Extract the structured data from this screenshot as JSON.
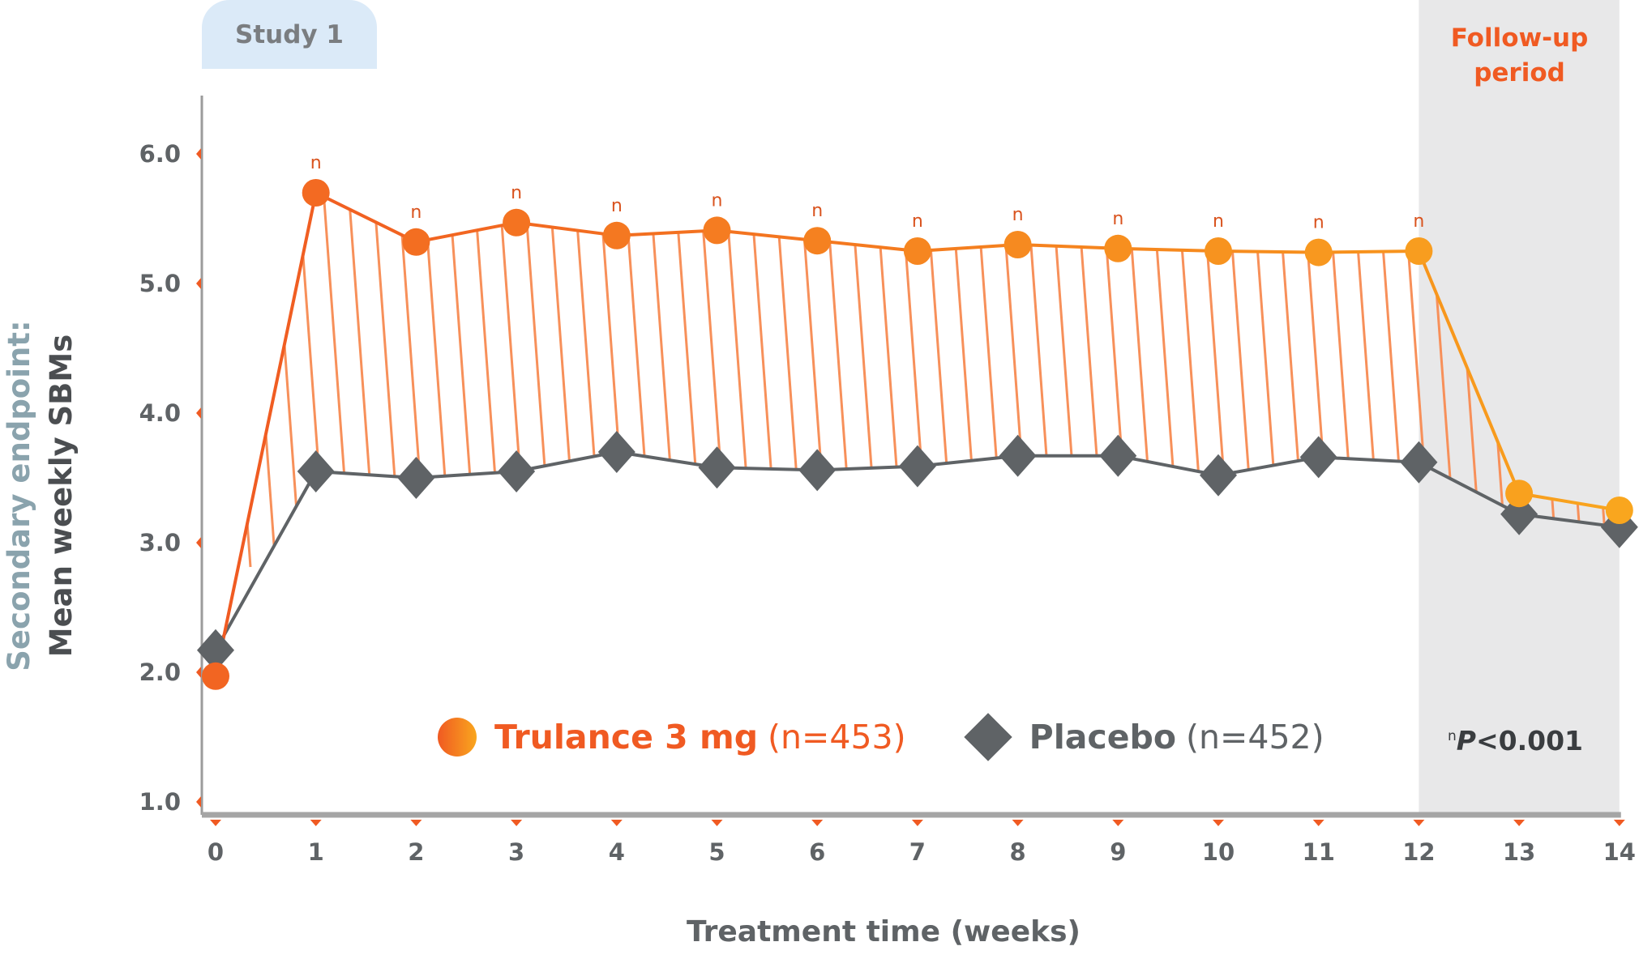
{
  "study_tab": "Study 1",
  "followup_label": [
    "Follow-up",
    "period"
  ],
  "significance_marker": "n",
  "p_value": {
    "marker": "n",
    "label": "P",
    "rest": "<0.001"
  },
  "legend": {
    "trulance": {
      "label": "Trulance 3 mg",
      "n": "(n=453)"
    },
    "placebo": {
      "label": "Placebo",
      "n": "(n=452)"
    }
  },
  "colors": {
    "trulance": "#f26522",
    "trulance_end": "#f9a61e",
    "placebo": "#5f6366",
    "hatch": "#f7905a",
    "followup_bg": "#e8e8e9",
    "tick_marker": "#f05a22"
  },
  "chart_data": {
    "type": "line",
    "title": "",
    "xlabel": "Treatment time (weeks)",
    "ylabel": [
      "Secondary endpoint:",
      "Mean weekly SBMs"
    ],
    "x": [
      0,
      1,
      2,
      3,
      4,
      5,
      6,
      7,
      8,
      9,
      10,
      11,
      12,
      13,
      14
    ],
    "x_tick_labels": [
      "0",
      "1",
      "2",
      "3",
      "4",
      "5",
      "6",
      "7",
      "8",
      "9",
      "10",
      "11",
      "12",
      "13",
      "14"
    ],
    "y_tick_labels": [
      "1.0",
      "2.0",
      "3.0",
      "4.0",
      "5.0",
      "6.0"
    ],
    "y_ticks": [
      1,
      2,
      3,
      4,
      5,
      6
    ],
    "ylim": [
      0.9,
      6.5
    ],
    "xlim": [
      -0.14,
      14
    ],
    "followup_range": [
      12,
      14
    ],
    "series": [
      {
        "name": "Trulance 3 mg",
        "values": [
          1.97,
          5.7,
          5.32,
          5.47,
          5.37,
          5.41,
          5.33,
          5.25,
          5.3,
          5.27,
          5.25,
          5.24,
          5.25,
          3.38,
          3.25
        ],
        "significant": [
          false,
          true,
          true,
          true,
          true,
          true,
          true,
          true,
          true,
          true,
          true,
          true,
          true,
          false,
          false
        ]
      },
      {
        "name": "Placebo",
        "values": [
          2.17,
          3.55,
          3.5,
          3.55,
          3.7,
          3.58,
          3.56,
          3.59,
          3.67,
          3.67,
          3.52,
          3.66,
          3.62,
          3.22,
          3.12
        ]
      }
    ]
  }
}
